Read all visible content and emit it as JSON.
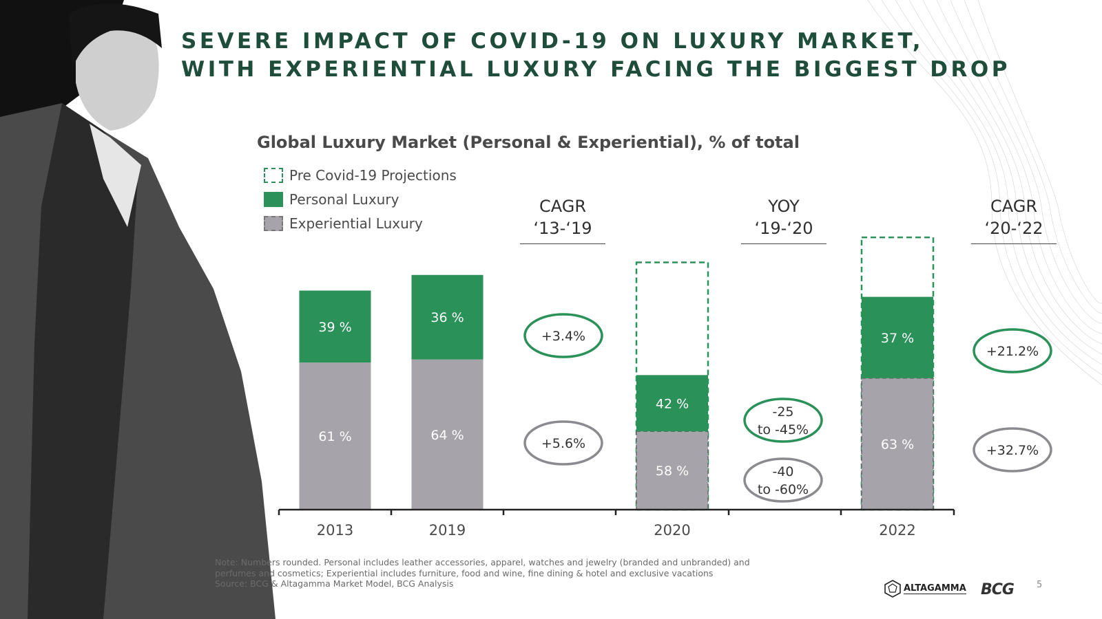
{
  "slide": {
    "title_line1": "SEVERE IMPACT OF COVID-19 ON LUXURY MARKET,",
    "title_line2": "WITH EXPERIENTIAL LUXURY FACING THE BIGGEST DROP",
    "page_number": "5"
  },
  "legend": {
    "projection": "Pre Covid-19 Projections",
    "personal": "Personal Luxury",
    "experiential": "Experiential Luxury"
  },
  "column_headers": {
    "cagr_13_19": {
      "line1": "CAGR",
      "line2": "‘13-‘19"
    },
    "yoy_19_20": {
      "line1": "YOY",
      "line2": "‘19-‘20"
    },
    "cagr_20_22": {
      "line1": "CAGR",
      "line2": "‘20-‘22"
    }
  },
  "notes": {
    "line1": "Note: Numbers rounded. Personal includes leather accessories, apparel, watches and jewelry (branded and unbranded) and",
    "line2": "perfumes and cosmetics; Experiential includes furniture, food and wine, fine dining & hotel and exclusive vacations",
    "line3": "Source: BCG & Altagamma Market Model, BCG Analysis"
  },
  "logos": {
    "altagamma": "ALTAGAMMA",
    "bcg": "BCG"
  },
  "colors": {
    "green": "#2a9158",
    "grey": "#a6a3aa",
    "title": "#1f4d3c",
    "oval_grey": "#8c8a8e"
  },
  "chart_data": {
    "type": "bar",
    "stacked": true,
    "title": "Global Luxury Market (Personal & Experiential), % of total",
    "categories": [
      "2013",
      "2019",
      "2020",
      "2022"
    ],
    "series": [
      {
        "name": "Experiential Luxury",
        "labels": [
          "61 %",
          "64 %",
          "58 %",
          "63 %"
        ],
        "share": [
          61,
          64,
          58,
          63
        ],
        "relative_height": [
          47,
          48,
          25,
          42
        ]
      },
      {
        "name": "Personal Luxury",
        "labels": [
          "39 %",
          "36 %",
          "42 %",
          "37 %"
        ],
        "share": [
          39,
          36,
          42,
          37
        ],
        "relative_height": [
          23,
          27,
          18,
          26
        ]
      }
    ],
    "pre_covid_projection": {
      "name": "Pre Covid-19 Projections",
      "categories": [
        "2020",
        "2022"
      ],
      "relative_height": [
        79,
        87
      ]
    },
    "growth_annotations": [
      {
        "period": "CAGR ‘13-‘19",
        "personal": "+3.4%",
        "experiential": "+5.6%"
      },
      {
        "period": "YOY ‘19-‘20",
        "personal": "-25\nto -45%",
        "experiential": "-40\nto -60%"
      },
      {
        "period": "CAGR ‘20-‘22",
        "personal": "+21.2%",
        "experiential": "+32.7%"
      }
    ],
    "grid": false,
    "legend_position": "top-left"
  }
}
